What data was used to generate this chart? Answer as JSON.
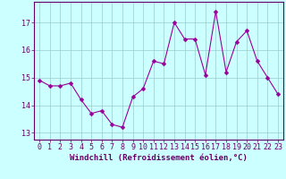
{
  "x": [
    0,
    1,
    2,
    3,
    4,
    5,
    6,
    7,
    8,
    9,
    10,
    11,
    12,
    13,
    14,
    15,
    16,
    17,
    18,
    19,
    20,
    21,
    22,
    23
  ],
  "y": [
    14.9,
    14.7,
    14.7,
    14.8,
    14.2,
    13.7,
    13.8,
    13.3,
    13.2,
    14.3,
    14.6,
    15.6,
    15.5,
    17.0,
    16.4,
    16.4,
    15.1,
    17.4,
    15.2,
    16.3,
    16.7,
    15.6,
    15.0,
    14.4
  ],
  "line_color": "#990099",
  "marker": "D",
  "marker_size": 2.5,
  "bg_color": "#ccffff",
  "grid_color": "#99cccc",
  "xlabel": "Windchill (Refroidissement éolien,°C)",
  "xlim": [
    -0.5,
    23.5
  ],
  "ylim": [
    12.75,
    17.75
  ],
  "yticks": [
    13,
    14,
    15,
    16,
    17
  ],
  "xticks": [
    0,
    1,
    2,
    3,
    4,
    5,
    6,
    7,
    8,
    9,
    10,
    11,
    12,
    13,
    14,
    15,
    16,
    17,
    18,
    19,
    20,
    21,
    22,
    23
  ],
  "line_color_hex": "#880088",
  "axis_color": "#660066",
  "tick_color": "#660066",
  "label_fontsize": 6.5,
  "tick_fontsize": 6.0
}
